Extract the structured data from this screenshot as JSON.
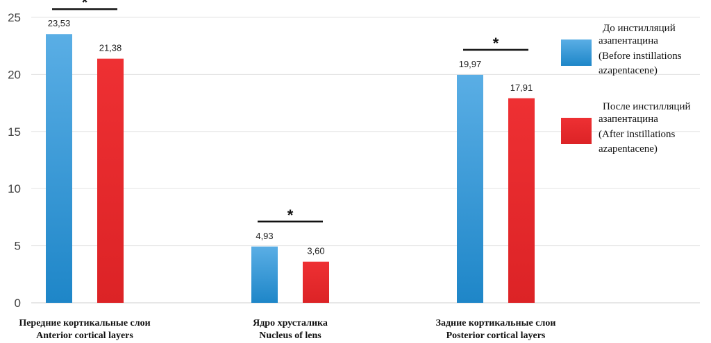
{
  "chart_data": {
    "type": "bar",
    "ylim": [
      0,
      25
    ],
    "yticks": [
      0,
      5,
      10,
      15,
      20,
      25
    ],
    "categories": [
      {
        "ru": "Передние кортикальные слои",
        "en": "Anterior cortical layers"
      },
      {
        "ru": "Ядро хрусталика",
        "en": "Nucleus of lens"
      },
      {
        "ru": "Задние кортикальные слои",
        "en": "Posterior cortical layers"
      }
    ],
    "series": [
      {
        "name_ru_1": "До инстилляций",
        "name_ru_2": "азапентацина",
        "name_en_1": "(Before instillations",
        "name_en_2": "azapentacene)",
        "color": "#3b9ad8",
        "values": [
          23.53,
          4.93,
          19.97
        ],
        "labels": [
          "23,53",
          "4,93",
          "19,97"
        ]
      },
      {
        "name_ru_1": "После инстилляций",
        "name_ru_2": "азапентацина",
        "name_en_1": "(After instillations",
        "name_en_2": "azapentacene)",
        "color": "#e8292b",
        "values": [
          21.38,
          3.6,
          17.91
        ],
        "labels": [
          "21,38",
          "3,60",
          "17,91"
        ]
      }
    ],
    "significance_marker": "*",
    "significant_groups": [
      0,
      1,
      2
    ],
    "legend_position": "right"
  }
}
